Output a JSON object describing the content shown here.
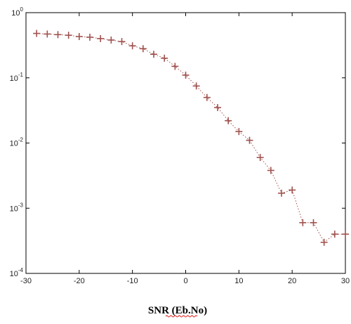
{
  "chart_data": {
    "type": "line",
    "title": "",
    "xlabel": "SNR (Eb.No)",
    "ylabel": "",
    "xlim": [
      -30,
      30
    ],
    "ylim": [
      0.0001,
      1
    ],
    "yscale": "log",
    "grid": false,
    "line_style": "dotted",
    "marker": "+",
    "series_color": "#a0524f",
    "xticks": [
      "-30",
      "-20",
      "-10",
      "0",
      "10",
      "20",
      "30"
    ],
    "yticks": [
      {
        "base": "10",
        "exp": "-4",
        "value": 0.0001
      },
      {
        "base": "10",
        "exp": "-3",
        "value": 0.001
      },
      {
        "base": "10",
        "exp": "-2",
        "value": 0.01
      },
      {
        "base": "10",
        "exp": "-1",
        "value": 0.1
      },
      {
        "base": "10",
        "exp": "0",
        "value": 1
      }
    ],
    "x": [
      -28,
      -26,
      -24,
      -22,
      -20,
      -18,
      -16,
      -14,
      -12,
      -10,
      -8,
      -6,
      -4,
      -2,
      0,
      2,
      4,
      6,
      8,
      10,
      12,
      14,
      16,
      18,
      20,
      22,
      24,
      26,
      28,
      30
    ],
    "y": [
      0.48,
      0.47,
      0.46,
      0.45,
      0.43,
      0.42,
      0.4,
      0.38,
      0.36,
      0.31,
      0.28,
      0.23,
      0.2,
      0.15,
      0.11,
      0.075,
      0.05,
      0.035,
      0.022,
      0.015,
      0.011,
      0.006,
      0.0038,
      0.0017,
      0.0019,
      0.0006,
      0.0006,
      0.0003,
      0.0004,
      0.0004
    ]
  }
}
